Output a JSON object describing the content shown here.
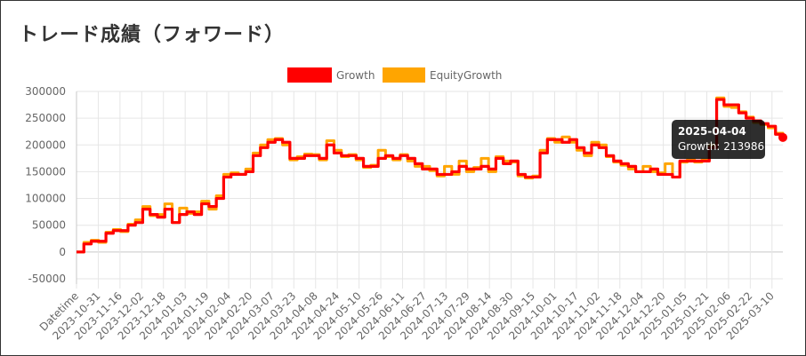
{
  "title": "トレード成績（フォワード）",
  "colors": {
    "growth": "#ff0000",
    "equity": "#ffa500",
    "grid": "#e6e6e6",
    "text": "#666666"
  },
  "tooltip": {
    "date": "2025-04-04",
    "text": "Growth: 213986"
  },
  "chart_data": {
    "type": "line",
    "legend_position": "top",
    "grid": true,
    "series": [
      {
        "name": "Growth",
        "color": "#ff0000",
        "points": [
          [
            0,
            0
          ],
          [
            0.5,
            0
          ],
          [
            1,
            15000
          ],
          [
            2,
            20000
          ],
          [
            3,
            20000
          ],
          [
            4,
            35000
          ],
          [
            5,
            40000
          ],
          [
            6,
            40000
          ],
          [
            7,
            50000
          ],
          [
            8,
            55000
          ],
          [
            9,
            80000
          ],
          [
            10,
            70000
          ],
          [
            11,
            65000
          ],
          [
            12,
            80000
          ],
          [
            13,
            55000
          ],
          [
            14,
            70000
          ],
          [
            15,
            75000
          ],
          [
            16,
            70000
          ],
          [
            17,
            90000
          ],
          [
            18,
            85000
          ],
          [
            19,
            100000
          ],
          [
            20,
            140000
          ],
          [
            21,
            145000
          ],
          [
            22,
            145000
          ],
          [
            23,
            150000
          ],
          [
            24,
            180000
          ],
          [
            25,
            195000
          ],
          [
            26,
            205000
          ],
          [
            27,
            210000
          ],
          [
            28,
            205000
          ],
          [
            29,
            175000
          ],
          [
            30,
            175000
          ],
          [
            31,
            180000
          ],
          [
            32,
            180000
          ],
          [
            33,
            175000
          ],
          [
            34,
            200000
          ],
          [
            35,
            185000
          ],
          [
            36,
            180000
          ],
          [
            37,
            180000
          ],
          [
            38,
            175000
          ],
          [
            39,
            160000
          ],
          [
            40,
            160000
          ],
          [
            41,
            175000
          ],
          [
            42,
            180000
          ],
          [
            43,
            175000
          ],
          [
            44,
            180000
          ],
          [
            45,
            175000
          ],
          [
            46,
            165000
          ],
          [
            47,
            155000
          ],
          [
            48,
            155000
          ],
          [
            49,
            145000
          ],
          [
            50,
            145000
          ],
          [
            51,
            150000
          ],
          [
            52,
            160000
          ],
          [
            53,
            155000
          ],
          [
            54,
            155000
          ],
          [
            55,
            160000
          ],
          [
            56,
            155000
          ],
          [
            57,
            175000
          ],
          [
            58,
            165000
          ],
          [
            59,
            170000
          ],
          [
            60,
            145000
          ],
          [
            61,
            140000
          ],
          [
            62,
            140000
          ],
          [
            63,
            185000
          ],
          [
            64,
            210000
          ],
          [
            65,
            210000
          ],
          [
            66,
            205000
          ],
          [
            67,
            210000
          ],
          [
            68,
            195000
          ],
          [
            69,
            185000
          ],
          [
            70,
            200000
          ],
          [
            71,
            195000
          ],
          [
            72,
            180000
          ],
          [
            73,
            170000
          ],
          [
            74,
            165000
          ],
          [
            75,
            160000
          ],
          [
            76,
            150000
          ],
          [
            77,
            150000
          ],
          [
            78,
            155000
          ],
          [
            79,
            145000
          ],
          [
            80,
            145000
          ],
          [
            81,
            140000
          ],
          [
            82,
            170000
          ],
          [
            83,
            170000
          ],
          [
            84,
            170000
          ],
          [
            85,
            170000
          ],
          [
            86,
            195000
          ],
          [
            87,
            285000
          ],
          [
            88,
            275000
          ],
          [
            89,
            275000
          ],
          [
            90,
            260000
          ],
          [
            91,
            250000
          ],
          [
            92,
            245000
          ],
          [
            93,
            240000
          ],
          [
            94,
            235000
          ],
          [
            95,
            220000
          ],
          [
            96,
            213986
          ]
        ]
      },
      {
        "name": "EquityGrowth",
        "color": "#ffa500",
        "points": [
          [
            0,
            0
          ],
          [
            1,
            18000
          ],
          [
            2,
            22000
          ],
          [
            3,
            18000
          ],
          [
            4,
            37000
          ],
          [
            5,
            42000
          ],
          [
            6,
            38000
          ],
          [
            7,
            52000
          ],
          [
            8,
            60000
          ],
          [
            9,
            85000
          ],
          [
            10,
            68000
          ],
          [
            11,
            70000
          ],
          [
            12,
            90000
          ],
          [
            13,
            55000
          ],
          [
            14,
            82000
          ],
          [
            15,
            72000
          ],
          [
            16,
            75000
          ],
          [
            17,
            95000
          ],
          [
            18,
            80000
          ],
          [
            19,
            105000
          ],
          [
            20,
            145000
          ],
          [
            21,
            148000
          ],
          [
            22,
            145000
          ],
          [
            23,
            155000
          ],
          [
            24,
            185000
          ],
          [
            25,
            200000
          ],
          [
            26,
            210000
          ],
          [
            27,
            212000
          ],
          [
            28,
            200000
          ],
          [
            29,
            172000
          ],
          [
            30,
            178000
          ],
          [
            31,
            183000
          ],
          [
            32,
            182000
          ],
          [
            33,
            172000
          ],
          [
            34,
            208000
          ],
          [
            35,
            190000
          ],
          [
            36,
            178000
          ],
          [
            37,
            182000
          ],
          [
            38,
            172000
          ],
          [
            39,
            158000
          ],
          [
            40,
            162000
          ],
          [
            41,
            190000
          ],
          [
            42,
            178000
          ],
          [
            43,
            172000
          ],
          [
            44,
            182000
          ],
          [
            45,
            170000
          ],
          [
            46,
            160000
          ],
          [
            47,
            160000
          ],
          [
            48,
            152000
          ],
          [
            49,
            142000
          ],
          [
            50,
            160000
          ],
          [
            51,
            145000
          ],
          [
            52,
            170000
          ],
          [
            53,
            150000
          ],
          [
            54,
            158000
          ],
          [
            55,
            175000
          ],
          [
            56,
            150000
          ],
          [
            57,
            178000
          ],
          [
            58,
            170000
          ],
          [
            59,
            168000
          ],
          [
            60,
            142000
          ],
          [
            61,
            138000
          ],
          [
            62,
            142000
          ],
          [
            63,
            190000
          ],
          [
            64,
            212000
          ],
          [
            65,
            205000
          ],
          [
            66,
            215000
          ],
          [
            67,
            205000
          ],
          [
            68,
            190000
          ],
          [
            69,
            180000
          ],
          [
            70,
            205000
          ],
          [
            71,
            200000
          ],
          [
            72,
            178000
          ],
          [
            73,
            168000
          ],
          [
            74,
            162000
          ],
          [
            75,
            155000
          ],
          [
            76,
            150000
          ],
          [
            77,
            160000
          ],
          [
            78,
            150000
          ],
          [
            79,
            148000
          ],
          [
            80,
            165000
          ],
          [
            81,
            140000
          ],
          [
            82,
            168000
          ],
          [
            83,
            172000
          ],
          [
            84,
            168000
          ],
          [
            85,
            172000
          ],
          [
            86,
            200000
          ],
          [
            87,
            288000
          ],
          [
            88,
            272000
          ],
          [
            89,
            270000
          ],
          [
            90,
            262000
          ],
          [
            91,
            252000
          ],
          [
            92,
            242000
          ],
          [
            93,
            238000
          ],
          [
            94,
            232000
          ],
          [
            95,
            222000
          ],
          [
            96,
            213986
          ]
        ]
      }
    ],
    "x_count": 96,
    "xlabels": [
      "Datetime",
      "2023-10-31",
      "2023-11-16",
      "2023-12-02",
      "2023-12-18",
      "2024-01-03",
      "2024-01-19",
      "2024-02-04",
      "2024-02-20",
      "2024-03-07",
      "2024-03-23",
      "2024-04-08",
      "2024-04-24",
      "2024-05-10",
      "2024-05-26",
      "2024-06-11",
      "2024-06-27",
      "2024-07-13",
      "2024-07-29",
      "2024-08-14",
      "2024-08-30",
      "2024-09-15",
      "2024-10-01",
      "2024-10-17",
      "2024-11-02",
      "2024-11-18",
      "2024-12-04",
      "2024-12-20",
      "2025-01-05",
      "2025-01-21",
      "2025-02-06",
      "2025-02-22",
      "2025-03-10"
    ],
    "yticks": [
      300000,
      250000,
      200000,
      150000,
      100000,
      50000,
      0,
      -50000
    ],
    "ylim": [
      -60000,
      300000
    ]
  }
}
